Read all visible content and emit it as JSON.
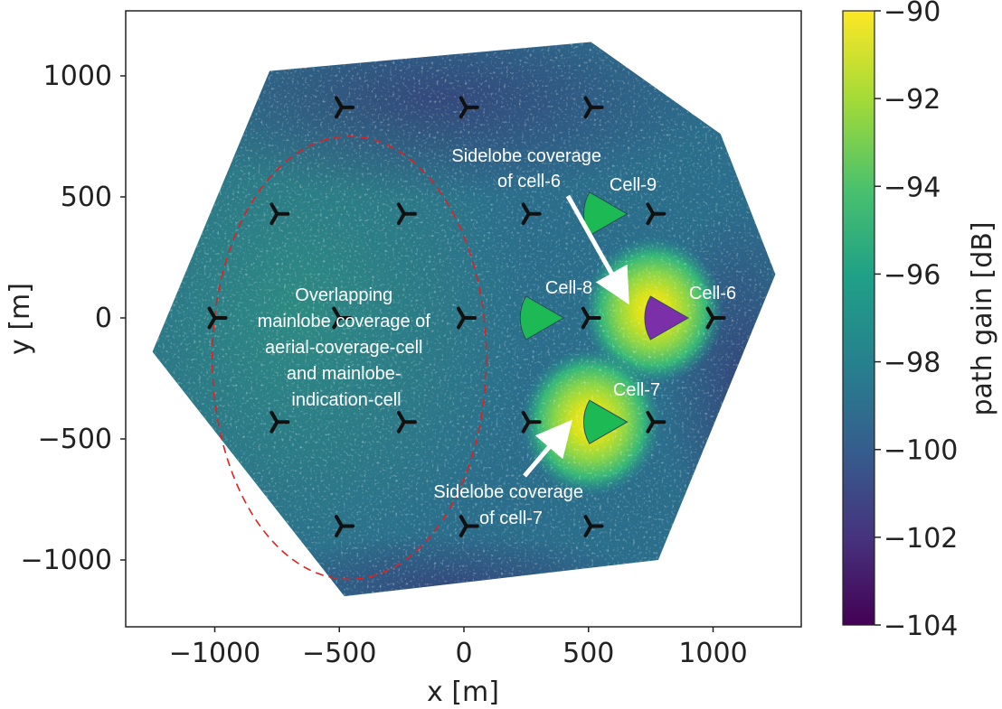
{
  "chart_data": {
    "type": "heatmap",
    "xlabel": "x [m]",
    "ylabel": "y [m]",
    "xlim": [
      -1350,
      1350
    ],
    "ylim": [
      -1270,
      1270
    ],
    "x_ticks": [
      -1000,
      -500,
      0,
      500,
      1000
    ],
    "x_tick_labels": [
      "−1000",
      "−500",
      "0",
      "500",
      "1000"
    ],
    "y_ticks": [
      1000,
      500,
      0,
      -500,
      -1000
    ],
    "y_tick_labels": [
      "1000",
      "500",
      "0",
      "−500",
      "−1000"
    ],
    "grid": false,
    "region_hexagon": [
      [
        1250,
        180
      ],
      [
        1030,
        760
      ],
      [
        510,
        1140
      ],
      [
        -780,
        1020
      ],
      [
        -1250,
        -140
      ],
      [
        -480,
        -1150
      ],
      [
        780,
        -1000
      ]
    ],
    "colorbar": {
      "label": "path gain [dB]",
      "range": [
        -104,
        -90
      ],
      "ticks": [
        -90,
        -92,
        -94,
        -96,
        -98,
        -100,
        -102,
        -104
      ],
      "tick_labels": [
        "−90",
        "−92",
        "−94",
        "−96",
        "−98",
        "−100",
        "−102",
        "−104"
      ],
      "colormap": "viridis"
    },
    "base_stations": [
      {
        "x": -490,
        "y": 870
      },
      {
        "x": 10,
        "y": 870
      },
      {
        "x": 510,
        "y": 870
      },
      {
        "x": -750,
        "y": 430
      },
      {
        "x": -240,
        "y": 430
      },
      {
        "x": 260,
        "y": 430
      },
      {
        "x": 760,
        "y": 430
      },
      {
        "x": -1000,
        "y": 0
      },
      {
        "x": -500,
        "y": 0
      },
      {
        "x": 0,
        "y": 0
      },
      {
        "x": 500,
        "y": 0
      },
      {
        "x": 1000,
        "y": 0
      },
      {
        "x": -750,
        "y": -430
      },
      {
        "x": -240,
        "y": -430
      },
      {
        "x": 260,
        "y": -430
      },
      {
        "x": 760,
        "y": -430
      },
      {
        "x": -490,
        "y": -860
      },
      {
        "x": 10,
        "y": -860
      },
      {
        "x": 510,
        "y": -860
      }
    ],
    "hotspots": [
      {
        "name": "Sidelobe coverage of cell-6",
        "x": 760,
        "y": 30,
        "peak_db": -90.5
      },
      {
        "name": "Sidelobe coverage of cell-7",
        "x": 510,
        "y": -430,
        "peak_db": -90.5
      }
    ],
    "cells": [
      {
        "name": "Cell-9",
        "x": 655,
        "y": 430,
        "color": "#1db954"
      },
      {
        "name": "Cell-8",
        "x": 400,
        "y": 0,
        "color": "#1db954"
      },
      {
        "name": "Cell-6",
        "x": 900,
        "y": 0,
        "color": "#7b2fa8"
      },
      {
        "name": "Cell-7",
        "x": 655,
        "y": -430,
        "color": "#1db954"
      }
    ],
    "dashed_ellipse": {
      "center": [
        -460,
        -165
      ],
      "semi_axes": [
        550,
        915
      ],
      "color": "#e02020"
    },
    "annotations": [
      {
        "id": "sidelobe6",
        "lines": [
          "Sidelobe coverage",
          "of cell-6"
        ]
      },
      {
        "id": "sidelobe7",
        "lines": [
          "Sidelobe coverage",
          "of cell-7"
        ]
      },
      {
        "id": "overlap",
        "lines": [
          "Overlapping",
          "mainlobe coverage of",
          "aerial-coverage-cell",
          "and mainlobe-",
          "indication-cell"
        ]
      }
    ]
  }
}
